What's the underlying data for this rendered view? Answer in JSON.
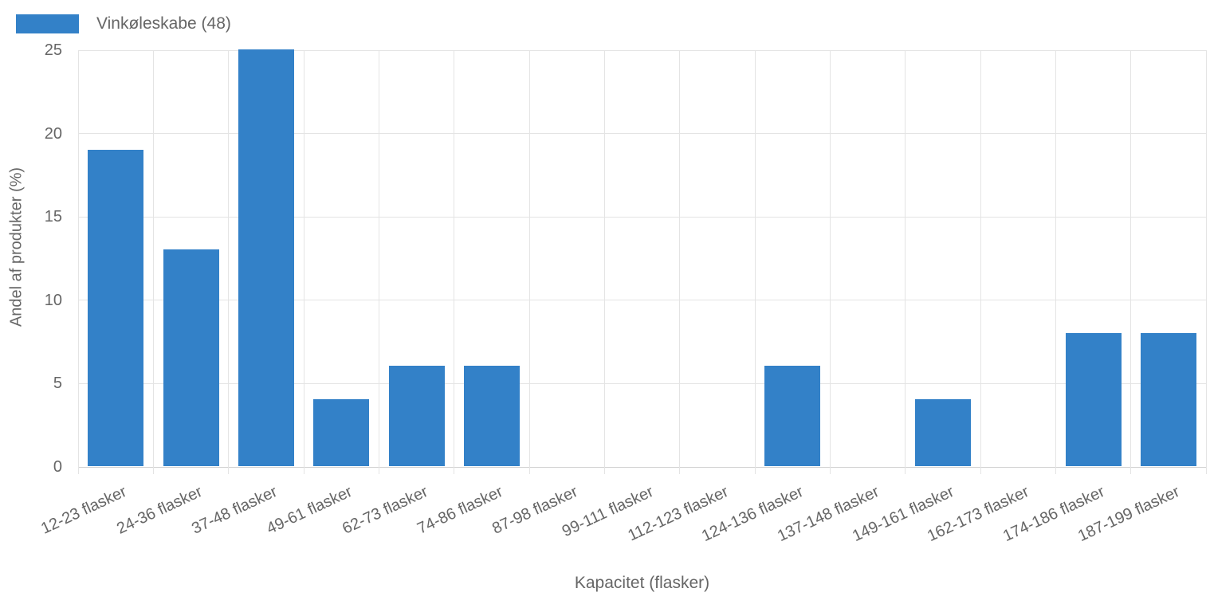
{
  "legend": {
    "label": "Vinkøleskabe (48)"
  },
  "chart_data": {
    "type": "bar",
    "title": "",
    "categories": [
      "12-23 flasker",
      "24-36 flasker",
      "37-48 flasker",
      "49-61 flasker",
      "62-73 flasker",
      "74-86 flasker",
      "87-98 flasker",
      "99-111 flasker",
      "112-123 flasker",
      "124-136 flasker",
      "137-148 flasker",
      "149-161 flasker",
      "162-173 flasker",
      "174-186 flasker",
      "187-199 flasker"
    ],
    "series": [
      {
        "name": "Vinkøleskabe (48)",
        "values": [
          19,
          13,
          25,
          4,
          6,
          6,
          0,
          0,
          0,
          6,
          0,
          4,
          0,
          8,
          8
        ]
      }
    ],
    "xlabel": "Kapacitet (flasker)",
    "ylabel": "Andel af produkter (%)",
    "ylim": [
      0,
      25
    ],
    "yticks": [
      0,
      5,
      10,
      15,
      20,
      25
    ],
    "grid": true,
    "legend_position": "top-left",
    "colors": {
      "bar": "#3381C8",
      "grid": "#E4E4E4",
      "baseline": "#D2D2D2",
      "text": "#666666"
    }
  }
}
